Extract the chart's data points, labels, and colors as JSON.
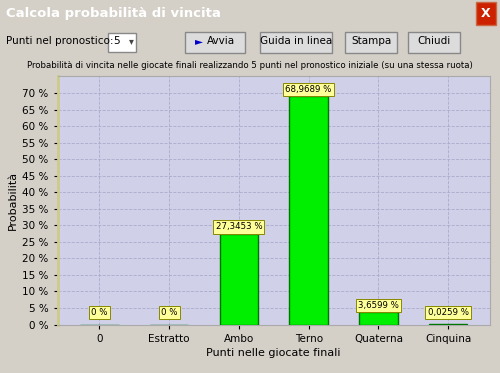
{
  "title_bar": "Calcola probabilità di vincita",
  "subtitle": "Probabilità di vincita nelle giocate finali realizzando 5 punti nel pronostico iniziale (su una stessa ruota)",
  "categories": [
    "0",
    "Estratto",
    "Ambo",
    "Terno",
    "Quaterna",
    "Cinquina"
  ],
  "values": [
    0.0,
    0.0,
    27.3453,
    68.9689,
    3.6599,
    0.0259
  ],
  "labels": [
    "0 %",
    "0 %",
    "27,3453 %",
    "68,9689 %",
    "3,6599 %",
    "0,0259 %"
  ],
  "bar_color_face": "#00ee00",
  "bar_color_edge": "#007700",
  "ylabel": "Probabilità",
  "xlabel": "Punti nelle giocate finali",
  "ylim": [
    0,
    75
  ],
  "yticks": [
    0,
    5,
    10,
    15,
    20,
    25,
    30,
    35,
    40,
    45,
    50,
    55,
    60,
    65,
    70
  ],
  "plot_bg": "#d0d0e8",
  "fig_bg": "#d4d0c8",
  "label_box_color": "#ffff99",
  "label_box_edge": "#888800",
  "title_bar_bg": "#1414cc",
  "title_bar_fg": "#ffffff",
  "grid_color": "#aaaacc",
  "chart_border_color": "#cccc88",
  "chart_left_bg": "#e8e8b0"
}
